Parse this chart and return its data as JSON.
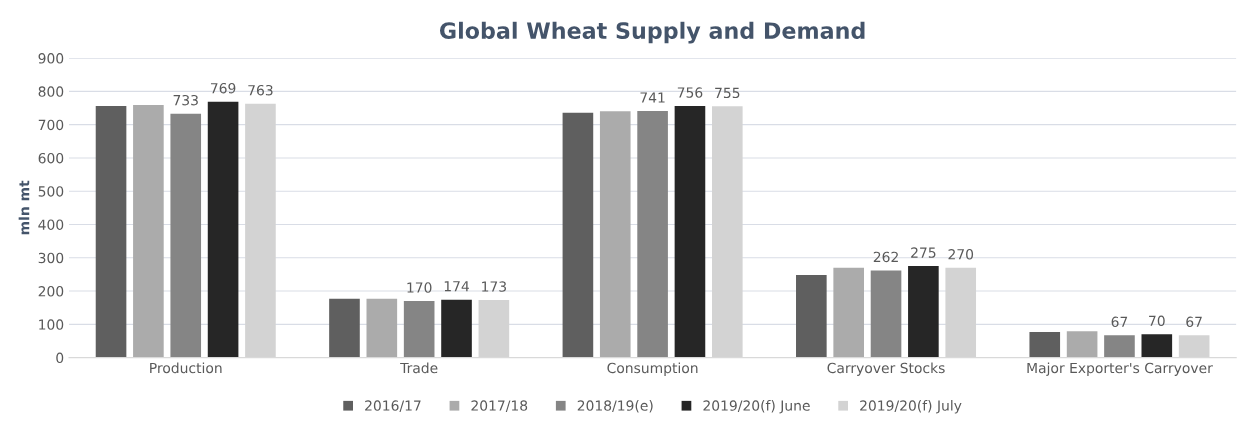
{
  "chart_data": {
    "type": "bar",
    "title": "Global Wheat Supply and Demand",
    "ylabel": "mln mt",
    "categories": [
      "Production",
      "Trade",
      "Consumption",
      "Carryover Stocks",
      "Major Exporter's Carryover"
    ],
    "series": [
      {
        "name": "2016/17",
        "color": "#5f5f5f",
        "values": [
          756,
          177,
          736,
          248,
          77
        ]
      },
      {
        "name": "2017/18",
        "color": "#ababab",
        "values": [
          759,
          177,
          740,
          270,
          79
        ]
      },
      {
        "name": "2018/19(e)",
        "color": "#858585",
        "values": [
          733,
          170,
          741,
          262,
          67
        ],
        "value_labels": [
          "733",
          "170",
          "741",
          "262",
          "67"
        ]
      },
      {
        "name": "2019/20(f) June",
        "color": "#262626",
        "values": [
          769,
          174,
          756,
          275,
          70
        ],
        "value_labels": [
          "769",
          "174",
          "756",
          "275",
          "70"
        ]
      },
      {
        "name": "2019/20(f) July",
        "color": "#d3d3d3",
        "values": [
          763,
          173,
          755,
          270,
          67
        ],
        "value_labels": [
          "763",
          "173",
          "755",
          "270",
          "67"
        ]
      }
    ],
    "ylim": [
      0,
      900
    ],
    "yticks": [
      0,
      100,
      200,
      300,
      400,
      500,
      600,
      700,
      800,
      900
    ],
    "grid": "y",
    "legend": "bottom"
  }
}
